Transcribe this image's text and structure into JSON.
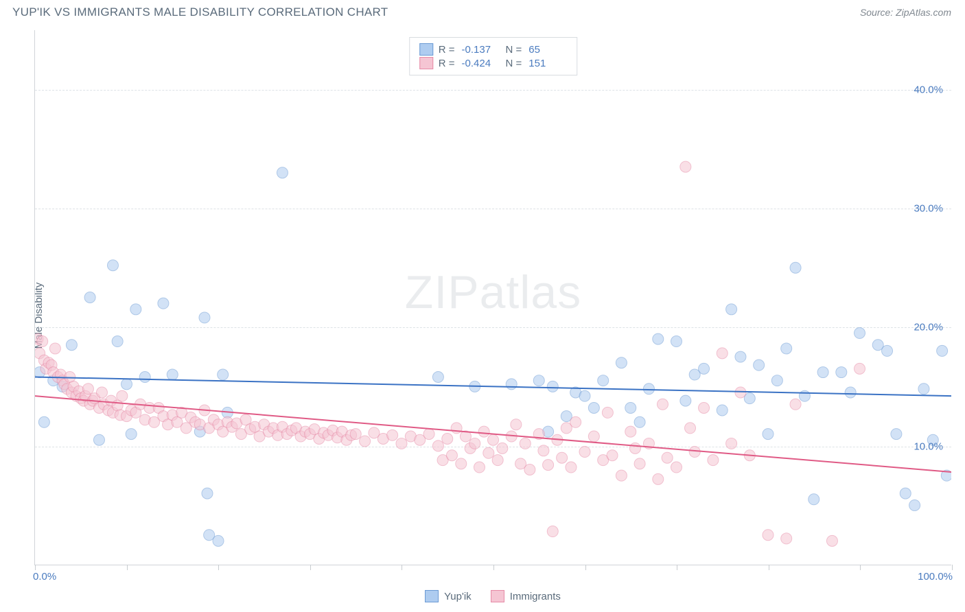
{
  "header": {
    "title": "YUP'IK VS IMMIGRANTS MALE DISABILITY CORRELATION CHART",
    "source": "Source: ZipAtlas.com"
  },
  "y_axis": {
    "label": "Male Disability"
  },
  "x_axis": {
    "min_label": "0.0%",
    "max_label": "100.0%"
  },
  "watermark": "ZIPatlas",
  "chart": {
    "type": "scatter",
    "xlim": [
      0,
      100
    ],
    "ylim": [
      0,
      45
    ],
    "y_ticks": [
      10,
      20,
      30,
      40
    ],
    "y_tick_labels": [
      "10.0%",
      "20.0%",
      "30.0%",
      "40.0%"
    ],
    "x_ticks": [
      0,
      10,
      20,
      30,
      40,
      50,
      60,
      70,
      80,
      90,
      100
    ],
    "background_color": "#ffffff",
    "grid_color": "#dde2e6",
    "axis_color": "#d0d4d8",
    "series": [
      {
        "name": "Yup'ik",
        "color_fill": "#aeccf0",
        "color_stroke": "#6b9ad4",
        "line_color": "#3a72c4",
        "line_width": 2,
        "marker_r": 8,
        "marker_opacity": 0.55,
        "R": "-0.137",
        "N": "65",
        "trend": {
          "x1": 0,
          "y1": 15.8,
          "x2": 100,
          "y2": 14.2
        },
        "points": [
          [
            0.5,
            16.2
          ],
          [
            1,
            12
          ],
          [
            2,
            15.5
          ],
          [
            3,
            15
          ],
          [
            4,
            18.5
          ],
          [
            6,
            22.5
          ],
          [
            7,
            10.5
          ],
          [
            8.5,
            25.2
          ],
          [
            9,
            18.8
          ],
          [
            10,
            15.2
          ],
          [
            10.5,
            11
          ],
          [
            11,
            21.5
          ],
          [
            12,
            15.8
          ],
          [
            14,
            22
          ],
          [
            15,
            16
          ],
          [
            18,
            11.2
          ],
          [
            18.5,
            20.8
          ],
          [
            18.8,
            6
          ],
          [
            19,
            2.5
          ],
          [
            20,
            2
          ],
          [
            20.5,
            16
          ],
          [
            21,
            12.8
          ],
          [
            27,
            33
          ],
          [
            44,
            15.8
          ],
          [
            48,
            15
          ],
          [
            52,
            15.2
          ],
          [
            55,
            15.5
          ],
          [
            56,
            11.2
          ],
          [
            56.5,
            15
          ],
          [
            58,
            12.5
          ],
          [
            59,
            14.5
          ],
          [
            60,
            14.2
          ],
          [
            61,
            13.2
          ],
          [
            62,
            15.5
          ],
          [
            64,
            17
          ],
          [
            65,
            13.2
          ],
          [
            66,
            12
          ],
          [
            67,
            14.8
          ],
          [
            68,
            19
          ],
          [
            70,
            18.8
          ],
          [
            71,
            13.8
          ],
          [
            72,
            16
          ],
          [
            73,
            16.5
          ],
          [
            75,
            13
          ],
          [
            76,
            21.5
          ],
          [
            77,
            17.5
          ],
          [
            78,
            14
          ],
          [
            79,
            16.8
          ],
          [
            80,
            11
          ],
          [
            81,
            15.5
          ],
          [
            82,
            18.2
          ],
          [
            83,
            25
          ],
          [
            84,
            14.2
          ],
          [
            85,
            5.5
          ],
          [
            86,
            16.2
          ],
          [
            88,
            16.2
          ],
          [
            89,
            14.5
          ],
          [
            90,
            19.5
          ],
          [
            92,
            18.5
          ],
          [
            93,
            18
          ],
          [
            94,
            11
          ],
          [
            95,
            6
          ],
          [
            96,
            5
          ],
          [
            97,
            14.8
          ],
          [
            98,
            10.5
          ],
          [
            99,
            18
          ],
          [
            99.5,
            7.5
          ]
        ]
      },
      {
        "name": "Immigrants",
        "color_fill": "#f5c5d3",
        "color_stroke": "#e68aa6",
        "line_color": "#e05a85",
        "line_width": 2,
        "marker_r": 8,
        "marker_opacity": 0.55,
        "R": "-0.424",
        "N": "151",
        "trend": {
          "x1": 0,
          "y1": 14.2,
          "x2": 100,
          "y2": 7.8
        },
        "points": [
          [
            0.3,
            19
          ],
          [
            0.5,
            17.8
          ],
          [
            0.8,
            18.8
          ],
          [
            1,
            17.2
          ],
          [
            1.2,
            16.5
          ],
          [
            1.5,
            17
          ],
          [
            1.8,
            16.8
          ],
          [
            2,
            16.2
          ],
          [
            2.2,
            18.2
          ],
          [
            2.5,
            15.8
          ],
          [
            2.8,
            16
          ],
          [
            3,
            15.5
          ],
          [
            3.2,
            15.2
          ],
          [
            3.5,
            14.8
          ],
          [
            3.8,
            15.8
          ],
          [
            4,
            14.5
          ],
          [
            4.2,
            15
          ],
          [
            4.5,
            14.2
          ],
          [
            4.8,
            14.6
          ],
          [
            5,
            14
          ],
          [
            5.3,
            13.8
          ],
          [
            5.5,
            14.2
          ],
          [
            5.8,
            14.8
          ],
          [
            6,
            13.5
          ],
          [
            6.3,
            13.8
          ],
          [
            6.5,
            14
          ],
          [
            7,
            13.2
          ],
          [
            7.3,
            14.5
          ],
          [
            7.5,
            13.5
          ],
          [
            8,
            13
          ],
          [
            8.3,
            13.8
          ],
          [
            8.5,
            12.8
          ],
          [
            9,
            13.4
          ],
          [
            9.3,
            12.6
          ],
          [
            9.5,
            14.2
          ],
          [
            10,
            12.5
          ],
          [
            10.5,
            13
          ],
          [
            11,
            12.8
          ],
          [
            11.5,
            13.5
          ],
          [
            12,
            12.2
          ],
          [
            12.5,
            13.2
          ],
          [
            13,
            12
          ],
          [
            13.5,
            13.2
          ],
          [
            14,
            12.5
          ],
          [
            14.5,
            11.8
          ],
          [
            15,
            12.6
          ],
          [
            15.5,
            12
          ],
          [
            16,
            12.8
          ],
          [
            16.5,
            11.5
          ],
          [
            17,
            12.4
          ],
          [
            17.5,
            12
          ],
          [
            18,
            11.8
          ],
          [
            18.5,
            13
          ],
          [
            19,
            11.5
          ],
          [
            19.5,
            12.2
          ],
          [
            20,
            11.8
          ],
          [
            20.5,
            11.2
          ],
          [
            21,
            12
          ],
          [
            21.5,
            11.6
          ],
          [
            22,
            11.9
          ],
          [
            22.5,
            11
          ],
          [
            23,
            12.2
          ],
          [
            23.5,
            11.4
          ],
          [
            24,
            11.6
          ],
          [
            24.5,
            10.8
          ],
          [
            25,
            11.8
          ],
          [
            25.5,
            11.2
          ],
          [
            26,
            11.5
          ],
          [
            26.5,
            10.9
          ],
          [
            27,
            11.6
          ],
          [
            27.5,
            11
          ],
          [
            28,
            11.3
          ],
          [
            28.5,
            11.5
          ],
          [
            29,
            10.8
          ],
          [
            29.5,
            11.2
          ],
          [
            30,
            11
          ],
          [
            30.5,
            11.4
          ],
          [
            31,
            10.6
          ],
          [
            31.5,
            11.1
          ],
          [
            32,
            10.9
          ],
          [
            32.5,
            11.3
          ],
          [
            33,
            10.7
          ],
          [
            33.5,
            11.2
          ],
          [
            34,
            10.5
          ],
          [
            34.5,
            10.9
          ],
          [
            35,
            11
          ],
          [
            36,
            10.4
          ],
          [
            37,
            11.1
          ],
          [
            38,
            10.6
          ],
          [
            39,
            10.9
          ],
          [
            40,
            10.2
          ],
          [
            41,
            10.8
          ],
          [
            42,
            10.5
          ],
          [
            43,
            11
          ],
          [
            44,
            10
          ],
          [
            44.5,
            8.8
          ],
          [
            45,
            10.6
          ],
          [
            45.5,
            9.2
          ],
          [
            46,
            11.5
          ],
          [
            46.5,
            8.5
          ],
          [
            47,
            10.8
          ],
          [
            47.5,
            9.8
          ],
          [
            48,
            10.2
          ],
          [
            48.5,
            8.2
          ],
          [
            49,
            11.2
          ],
          [
            49.5,
            9.4
          ],
          [
            50,
            10.5
          ],
          [
            50.5,
            8.8
          ],
          [
            51,
            9.8
          ],
          [
            52,
            10.8
          ],
          [
            52.5,
            11.8
          ],
          [
            53,
            8.5
          ],
          [
            53.5,
            10.2
          ],
          [
            54,
            8
          ],
          [
            55,
            11
          ],
          [
            55.5,
            9.6
          ],
          [
            56,
            8.4
          ],
          [
            56.5,
            2.8
          ],
          [
            57,
            10.5
          ],
          [
            57.5,
            9
          ],
          [
            58,
            11.5
          ],
          [
            58.5,
            8.2
          ],
          [
            59,
            12
          ],
          [
            60,
            9.5
          ],
          [
            61,
            10.8
          ],
          [
            62,
            8.8
          ],
          [
            62.5,
            12.8
          ],
          [
            63,
            9.2
          ],
          [
            64,
            7.5
          ],
          [
            65,
            11.2
          ],
          [
            65.5,
            9.8
          ],
          [
            66,
            8.5
          ],
          [
            67,
            10.2
          ],
          [
            68,
            7.2
          ],
          [
            68.5,
            13.5
          ],
          [
            69,
            9
          ],
          [
            70,
            8.2
          ],
          [
            71,
            33.5
          ],
          [
            71.5,
            11.5
          ],
          [
            72,
            9.5
          ],
          [
            73,
            13.2
          ],
          [
            74,
            8.8
          ],
          [
            75,
            17.8
          ],
          [
            76,
            10.2
          ],
          [
            77,
            14.5
          ],
          [
            78,
            9.2
          ],
          [
            80,
            2.5
          ],
          [
            82,
            2.2
          ],
          [
            83,
            13.5
          ],
          [
            87,
            2
          ],
          [
            90,
            16.5
          ]
        ]
      }
    ]
  },
  "legend_top": {
    "rows": [
      {
        "swatch_fill": "#aeccf0",
        "swatch_border": "#6b9ad4",
        "r_label": "R =",
        "r_value": "-0.137",
        "n_label": "N =",
        "n_value": "65"
      },
      {
        "swatch_fill": "#f5c5d3",
        "swatch_border": "#e68aa6",
        "r_label": "R =",
        "r_value": "-0.424",
        "n_label": "N =",
        "n_value": "151"
      }
    ]
  },
  "legend_bottom": {
    "items": [
      {
        "swatch_fill": "#aeccf0",
        "swatch_border": "#6b9ad4",
        "label": "Yup'ik"
      },
      {
        "swatch_fill": "#f5c5d3",
        "swatch_border": "#e68aa6",
        "label": "Immigrants"
      }
    ]
  }
}
